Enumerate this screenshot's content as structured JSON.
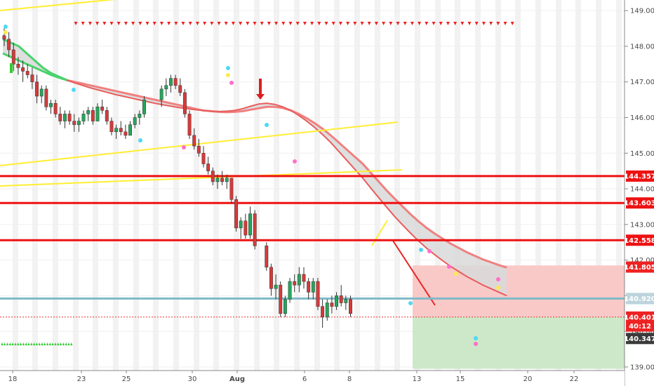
{
  "chart_data": {
    "type": "candlestick",
    "y_range": [
      138.9,
      149.2
    ],
    "x_ticks": [
      "18",
      "23",
      "25",
      "30",
      "Aug",
      "6",
      "8",
      "13",
      "15",
      "20",
      "22"
    ],
    "y_ticks": [
      "139.000",
      "140.000",
      "141.000",
      "142.000",
      "143.000",
      "144.000",
      "145.000",
      "146.000",
      "147.000",
      "148.000",
      "149.000"
    ],
    "horizontal_levels": [
      {
        "value": 144.357,
        "label": "144.357",
        "color": "#ee1111"
      },
      {
        "value": 143.603,
        "label": "143.603",
        "color": "#ee1111"
      },
      {
        "value": 142.558,
        "label": "142.558",
        "color": "#ee1111"
      },
      {
        "value": 140.92,
        "label": "140.920",
        "color": "#7fb9c8"
      }
    ],
    "price_tags": [
      {
        "value": 141.805,
        "label": "141.805",
        "color": "#ee2222"
      },
      {
        "value": 140.92,
        "label": "140.920",
        "color": "#bcd4dc"
      },
      {
        "value": 140.401,
        "label": "140.401",
        "color": "#ee2222"
      },
      {
        "value": 140.15,
        "label": "40:12",
        "color": "#ee2222"
      },
      {
        "value": 139.8,
        "label": "140.347",
        "color": "#3a3a3a"
      }
    ],
    "zones": [
      {
        "name": "stop",
        "from": 140.401,
        "to": 141.85,
        "color": "#f9c9c7"
      },
      {
        "name": "target",
        "from": 138.95,
        "to": 140.401,
        "color": "#cde8c8"
      }
    ],
    "ohlc": [
      [
        148.3,
        148.5,
        148.0,
        148.2
      ],
      [
        148.2,
        148.4,
        147.7,
        147.9
      ],
      [
        147.9,
        148.1,
        147.3,
        147.5
      ],
      [
        147.5,
        147.7,
        147.2,
        147.4
      ],
      [
        147.4,
        147.6,
        147.0,
        147.3
      ],
      [
        147.3,
        147.5,
        147.1,
        147.2
      ],
      [
        147.2,
        147.4,
        146.8,
        147.0
      ],
      [
        147.0,
        147.2,
        146.4,
        146.6
      ],
      [
        146.6,
        146.9,
        146.4,
        146.8
      ],
      [
        146.8,
        146.9,
        146.2,
        146.3
      ],
      [
        146.3,
        146.5,
        146.1,
        146.4
      ],
      [
        146.4,
        146.5,
        146.0,
        146.1
      ],
      [
        146.1,
        146.3,
        145.8,
        145.9
      ],
      [
        145.9,
        146.2,
        145.7,
        146.1
      ],
      [
        146.1,
        146.2,
        145.8,
        145.9
      ],
      [
        145.9,
        146.1,
        145.6,
        145.8
      ],
      [
        145.8,
        146.0,
        145.6,
        145.9
      ],
      [
        145.9,
        146.2,
        145.8,
        146.1
      ],
      [
        146.1,
        146.3,
        145.9,
        146.2
      ],
      [
        146.2,
        146.3,
        145.8,
        145.9
      ],
      [
        145.9,
        146.4,
        145.9,
        146.3
      ],
      [
        146.3,
        146.5,
        146.1,
        146.2
      ],
      [
        146.2,
        146.3,
        145.8,
        145.9
      ],
      [
        145.9,
        146.0,
        145.5,
        145.6
      ],
      [
        145.6,
        145.8,
        145.4,
        145.7
      ],
      [
        145.7,
        145.9,
        145.5,
        145.6
      ],
      [
        145.6,
        145.8,
        145.4,
        145.5
      ],
      [
        145.5,
        145.9,
        145.5,
        145.8
      ],
      [
        145.8,
        146.1,
        145.7,
        146.0
      ],
      [
        146.0,
        146.2,
        145.8,
        146.1
      ],
      [
        146.1,
        146.6,
        146.0,
        146.5
      ],
      [
        146.5,
        146.9,
        146.3,
        146.8
      ],
      [
        146.8,
        147.1,
        146.6,
        146.9
      ],
      [
        146.9,
        147.2,
        146.7,
        147.1
      ],
      [
        147.1,
        147.2,
        146.8,
        146.9
      ],
      [
        146.9,
        147.1,
        146.6,
        146.7
      ],
      [
        146.7,
        146.8,
        146.0,
        146.1
      ],
      [
        146.1,
        146.2,
        145.4,
        145.5
      ],
      [
        145.5,
        145.7,
        145.1,
        145.2
      ],
      [
        145.2,
        145.4,
        144.9,
        145.0
      ],
      [
        145.0,
        145.2,
        144.6,
        144.7
      ],
      [
        144.7,
        144.9,
        144.4,
        144.5
      ],
      [
        144.5,
        144.6,
        144.1,
        144.2
      ],
      [
        144.2,
        144.4,
        144.0,
        144.3
      ],
      [
        144.3,
        144.5,
        144.1,
        144.2
      ],
      [
        144.2,
        144.4,
        144.0,
        144.3
      ],
      [
        144.3,
        144.3,
        143.6,
        143.7
      ],
      [
        143.7,
        143.8,
        142.8,
        142.9
      ],
      [
        142.9,
        143.2,
        142.6,
        143.1
      ],
      [
        143.1,
        143.3,
        142.6,
        142.7
      ],
      [
        142.7,
        143.5,
        142.6,
        143.3
      ],
      [
        143.3,
        143.4,
        142.3,
        142.4
      ],
      [
        142.4,
        142.5,
        141.7,
        141.8
      ],
      [
        141.8,
        141.9,
        141.0,
        141.2
      ],
      [
        141.2,
        141.6,
        140.9,
        141.3
      ],
      [
        141.3,
        141.4,
        140.4,
        140.5
      ],
      [
        140.5,
        141.0,
        140.4,
        140.9
      ],
      [
        140.9,
        141.5,
        140.8,
        141.4
      ],
      [
        141.4,
        141.6,
        141.1,
        141.3
      ],
      [
        141.3,
        141.8,
        141.1,
        141.6
      ],
      [
        141.6,
        141.8,
        141.2,
        141.4
      ],
      [
        141.4,
        141.5,
        140.9,
        141.1
      ],
      [
        141.1,
        141.5,
        140.9,
        141.4
      ],
      [
        141.4,
        141.5,
        140.6,
        140.7
      ],
      [
        140.7,
        140.9,
        140.1,
        140.4
      ],
      [
        140.4,
        140.9,
        140.3,
        140.8
      ],
      [
        140.8,
        141.0,
        140.5,
        140.7
      ],
      [
        140.7,
        141.1,
        140.6,
        141.0
      ],
      [
        141.0,
        141.3,
        140.7,
        140.8
      ],
      [
        140.8,
        141.0,
        140.6,
        140.9
      ],
      [
        140.9,
        141.0,
        140.4,
        140.5
      ]
    ],
    "upper_ma": [
      147.8,
      147.7,
      147.6,
      147.5,
      147.4,
      147.3,
      147.2,
      147.12,
      147.05,
      147.0,
      146.95,
      146.9,
      146.85,
      146.8,
      146.75,
      146.7,
      146.65,
      146.6,
      146.55,
      146.5,
      146.45,
      146.4,
      146.35,
      146.3,
      146.25,
      146.2,
      146.18,
      146.16,
      146.15,
      146.16,
      146.18,
      146.22,
      146.26,
      146.3,
      146.3,
      146.27,
      146.2,
      146.1,
      145.98,
      145.84,
      145.68,
      145.5,
      145.3,
      145.1,
      144.9,
      144.7,
      144.45,
      144.2,
      143.95,
      143.72,
      143.5,
      143.28,
      143.08,
      142.9,
      142.74,
      142.6,
      142.46,
      142.34,
      142.22,
      142.12,
      142.02,
      141.94,
      141.86,
      141.79
    ],
    "lower_ma": [
      148.2,
      148.1,
      148.0,
      147.8,
      147.6,
      147.4,
      147.25,
      147.15,
      147.05,
      146.97,
      146.9,
      146.83,
      146.77,
      146.71,
      146.65,
      146.6,
      146.55,
      146.5,
      146.45,
      146.4,
      146.36,
      146.32,
      146.28,
      146.25,
      146.22,
      146.2,
      146.18,
      146.17,
      146.18,
      146.2,
      146.25,
      146.32,
      146.38,
      146.4,
      146.37,
      146.3,
      146.2,
      146.06,
      145.9,
      145.72,
      145.52,
      145.3,
      145.05,
      144.8,
      144.55,
      144.3,
      144.02,
      143.75,
      143.48,
      143.22,
      142.98,
      142.75,
      142.53,
      142.33,
      142.15,
      141.98,
      141.82,
      141.68,
      141.54,
      141.42,
      141.3,
      141.2,
      141.1,
      141.0
    ]
  }
}
